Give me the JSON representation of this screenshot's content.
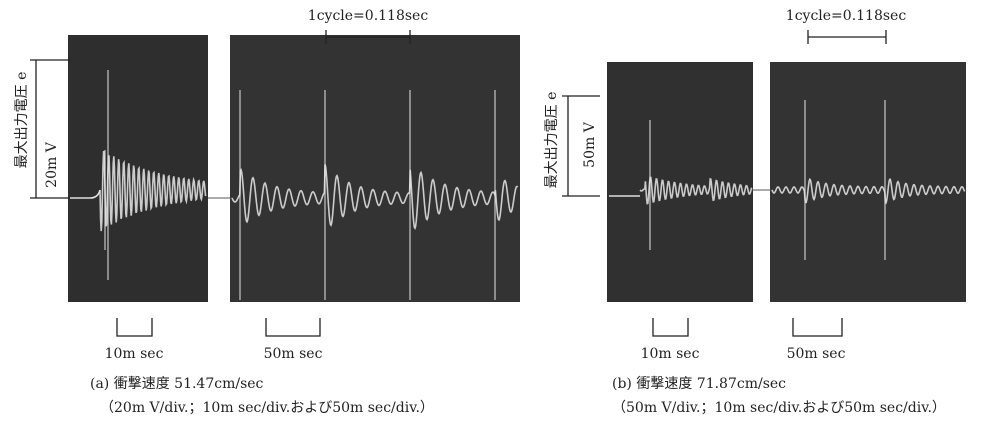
{
  "panels": [
    {
      "cycle_label": "1cycle=0.118sec",
      "y_label": "最大出力電圧 e",
      "scale_label": "20m V",
      "time_labels": [
        "10m sec",
        "50m sec"
      ],
      "caption": "(a) 衝撃速度 51.47cm/sec",
      "caption_detail": "（20m V/div.；10m sec/div.および50m sec/div.）"
    },
    {
      "cycle_label": "1cycle=0.118sec",
      "y_label": "最大出力電圧 e",
      "scale_label": "50m V",
      "time_labels": [
        "10m sec",
        "50m sec"
      ],
      "caption": "(b) 衝撃速度 71.87cm/sec",
      "caption_detail": "（50m V/div.；10m sec/div.および50m sec/div.）"
    }
  ]
}
